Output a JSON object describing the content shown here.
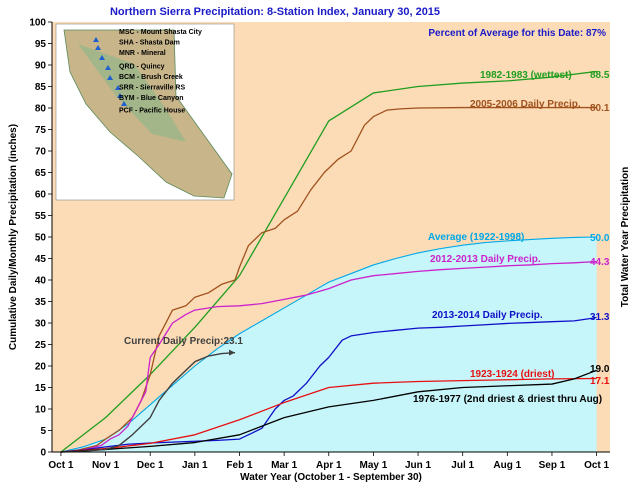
{
  "chart_data": {
    "type": "line",
    "title": "Northern Sierra Precipitation: 8-Station Index, January 30, 2015",
    "percent_note": "Percent of Average for this Date: 87%",
    "xlabel": "Water Year (October 1 - September 30)",
    "ylabel": "Cumulative Daily/Monthly Precipitation (inches)",
    "ylabel_right": "Total Water Year Precipitation",
    "ylim": [
      0,
      100
    ],
    "ytick_step": 5,
    "xlim": [
      -0.2,
      12.3
    ],
    "x_unit": "months after Oct 1",
    "categories": [
      "Oct 1",
      "Nov 1",
      "Dec 1",
      "Jan 1",
      "Feb 1",
      "Mar 1",
      "Apr 1",
      "May 1",
      "Jun 1",
      "Jul 1",
      "Aug 1",
      "Sep 1",
      "Oct 1"
    ],
    "grid": false,
    "map_stations": [
      "MSC - Mount Shasta City",
      "SHA - Shasta Dam",
      "MNR - Mineral",
      "QRD - Quincy",
      "BCM - Brush Creek",
      "SRR - Sierraville RS",
      "BYM - Blue Canyon",
      "PCF - Pacific House"
    ],
    "series": [
      {
        "name": "Average (1922-1998)",
        "label": "Average (1922-1998)",
        "end_value": "50.0",
        "style": "area",
        "color": "#00a8e8",
        "fill": "#c6f5fa",
        "x": [
          0,
          0.5,
          1,
          1.5,
          2,
          2.5,
          3,
          3.5,
          4,
          4.5,
          5,
          5.5,
          6,
          6.5,
          7,
          7.5,
          8,
          8.5,
          9,
          9.5,
          10,
          10.5,
          11,
          11.5,
          12
        ],
        "values": [
          0,
          1.2,
          3,
          6.5,
          11,
          15.5,
          20,
          24,
          27.5,
          30.5,
          33.5,
          36.5,
          39.5,
          41.5,
          43.5,
          45,
          46.3,
          47.3,
          48.1,
          48.7,
          49.1,
          49.4,
          49.7,
          49.9,
          50.0
        ]
      },
      {
        "name": "1982-1983 (wettest)",
        "label": "1982-1983 (wettest)",
        "end_value": "88.5",
        "color": "#1f9e1f",
        "x": [
          0,
          1,
          2,
          3,
          4,
          5,
          6,
          7,
          8,
          9,
          10,
          11,
          12
        ],
        "values": [
          0,
          8,
          18,
          29,
          41,
          59,
          77,
          83.5,
          85,
          85.8,
          86.3,
          87.2,
          88.5
        ]
      },
      {
        "name": "2005-2006 Daily Precip.",
        "label": "2005-2006 Daily Precip.",
        "end_value": "80.1",
        "color": "#a0521e",
        "x": [
          0,
          0.4,
          0.8,
          1,
          1.3,
          1.6,
          1.8,
          2.0,
          2.2,
          2.5,
          2.8,
          3.0,
          3.3,
          3.6,
          3.9,
          4.0,
          4.2,
          4.5,
          4.8,
          5.0,
          5.3,
          5.6,
          5.9,
          6.2,
          6.5,
          6.8,
          7.0,
          7.3,
          7.6,
          8,
          9,
          10,
          11,
          12
        ],
        "values": [
          0,
          0.5,
          1.5,
          3,
          5,
          8,
          12,
          18,
          27,
          33,
          34,
          36,
          37,
          39,
          40,
          43,
          48,
          51,
          52,
          54,
          56,
          61,
          65,
          68,
          70,
          76,
          78,
          79.5,
          79.8,
          80,
          80.1,
          80.1,
          80.1,
          80.1
        ]
      },
      {
        "name": "2012-2013 Daily Precip.",
        "label": "2012-2013 Daily Precip.",
        "end_value": "44.3",
        "color": "#cc22cc",
        "x": [
          0,
          0.5,
          0.9,
          1.1,
          1.3,
          1.5,
          1.7,
          1.9,
          2.0,
          2.2,
          2.5,
          2.8,
          3.0,
          3.5,
          4.0,
          4.5,
          5.0,
          5.5,
          6.0,
          6.5,
          7.0,
          7.5,
          8.0,
          8.5,
          9.0,
          9.5,
          10,
          10.5,
          11,
          11.5,
          12
        ],
        "values": [
          0,
          0.5,
          1.5,
          3,
          4,
          6,
          10,
          14,
          22,
          25,
          30,
          32,
          33,
          33.8,
          34,
          34.5,
          35.5,
          36.5,
          38,
          40,
          41,
          41.5,
          42,
          42.4,
          42.7,
          43,
          43.3,
          43.5,
          43.8,
          44,
          44.3
        ]
      },
      {
        "name": "2013-2014 Daily Precip.",
        "label": "2013-2014 Daily Precip.",
        "end_value": "31.3",
        "color": "#1010c8",
        "x": [
          0,
          0.5,
          1,
          1.5,
          2,
          2.5,
          3,
          3.5,
          4,
          4.3,
          4.5,
          4.8,
          5.0,
          5.2,
          5.5,
          5.8,
          6.0,
          6.3,
          6.5,
          7.0,
          7.5,
          8.0,
          8.5,
          9.0,
          9.5,
          10,
          10.5,
          11,
          11.5,
          11.9,
          12
        ],
        "values": [
          0,
          0.5,
          1.2,
          1.8,
          2.1,
          2.3,
          2.5,
          2.7,
          3,
          4.5,
          5.5,
          10,
          12,
          13,
          16,
          20,
          22,
          26,
          27,
          27.8,
          28.3,
          28.8,
          29,
          29.3,
          29.6,
          29.9,
          30.1,
          30.3,
          30.5,
          31.1,
          31.3
        ]
      },
      {
        "name": "1923-1924 (driest)",
        "label": "1923-1924 (driest)",
        "end_value": "17.1",
        "color": "#e81010",
        "x": [
          0,
          1,
          2,
          3,
          4,
          5,
          6,
          7,
          8,
          9,
          10,
          11,
          12
        ],
        "values": [
          0,
          0.8,
          2,
          4,
          7.5,
          11.5,
          15,
          16,
          16.4,
          16.6,
          16.8,
          17,
          17.1
        ]
      },
      {
        "name": "1976-1977 (2nd driest & driest thru Aug)",
        "label": "1976-1977 (2nd driest & driest thru Aug)",
        "end_value": "19.0",
        "color": "#000000",
        "x": [
          0,
          1,
          2,
          3,
          4,
          5,
          6,
          7,
          8,
          9,
          10,
          11,
          11.5,
          12
        ],
        "values": [
          0,
          0.6,
          1.3,
          2.2,
          4,
          8,
          10.5,
          12,
          14,
          15,
          15.4,
          15.8,
          17,
          19
        ]
      },
      {
        "name": "Current Daily Precip",
        "label": "Current Daily Precip:23.1",
        "style": "current",
        "color": "#404040",
        "x": [
          0,
          0.5,
          1,
          1.3,
          1.6,
          2.0,
          2.2,
          2.5,
          2.8,
          3.0,
          3.3,
          3.6,
          3.9
        ],
        "values": [
          0,
          0.2,
          0.6,
          1.5,
          4,
          8,
          12,
          16,
          19,
          21,
          22.3,
          22.9,
          23.1
        ]
      }
    ]
  }
}
